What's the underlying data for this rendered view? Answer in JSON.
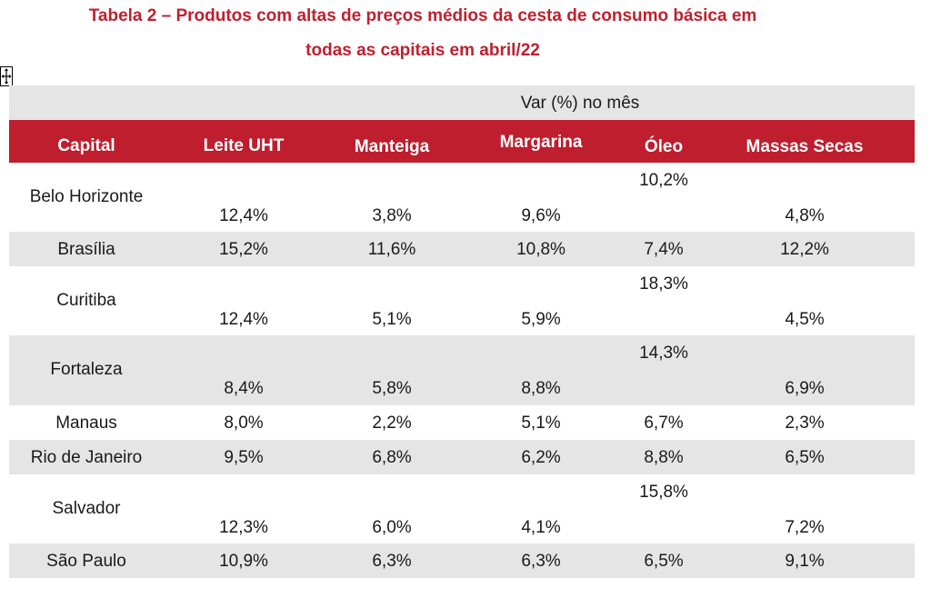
{
  "title": {
    "line1": "Tabela 2 – Produtos com altas de preços médios da cesta de consumo básica em",
    "line2": "todas as capitais em abril/22"
  },
  "table": {
    "supheader": "Var (%) no mês",
    "headers": [
      "Capital",
      "Leite UHT",
      "Manteiga",
      "Margarina",
      "Óleo",
      "Massas Secas"
    ],
    "rows": [
      {
        "capital": "Belo Horizonte",
        "leite": "12,4%",
        "manteiga": "3,8%",
        "margarina": "9,6%",
        "oleo": "10,2%",
        "massas": "4,8%"
      },
      {
        "capital": "Brasília",
        "leite": "15,2%",
        "manteiga": "11,6%",
        "margarina": "10,8%",
        "oleo": "7,4%",
        "massas": "12,2%"
      },
      {
        "capital": "Curitiba",
        "leite": "12,4%",
        "manteiga": "5,1%",
        "margarina": "5,9%",
        "oleo": "18,3%",
        "massas": "4,5%"
      },
      {
        "capital": "Fortaleza",
        "leite": "8,4%",
        "manteiga": "5,8%",
        "margarina": "8,8%",
        "oleo": "14,3%",
        "massas": "6,9%"
      },
      {
        "capital": "Manaus",
        "leite": "8,0%",
        "manteiga": "2,2%",
        "margarina": "5,1%",
        "oleo": "6,7%",
        "massas": "2,3%"
      },
      {
        "capital": "Rio de Janeiro",
        "leite": "9,5%",
        "manteiga": "6,8%",
        "margarina": "6,2%",
        "oleo": "8,8%",
        "massas": "6,5%"
      },
      {
        "capital": "Salvador",
        "leite": "12,3%",
        "manteiga": "6,0%",
        "margarina": "4,1%",
        "oleo": "15,8%",
        "massas": "7,2%"
      },
      {
        "capital": "São Paulo",
        "leite": "10,9%",
        "manteiga": "6,3%",
        "margarina": "6,3%",
        "oleo": "6,5%",
        "massas": "9,1%"
      }
    ]
  },
  "colors": {
    "title": "#c0202f",
    "header_bg": "#be1e2d",
    "stripe_bg": "#e5e5e5"
  },
  "icons": {
    "move_handle": "move-arrows-icon"
  }
}
